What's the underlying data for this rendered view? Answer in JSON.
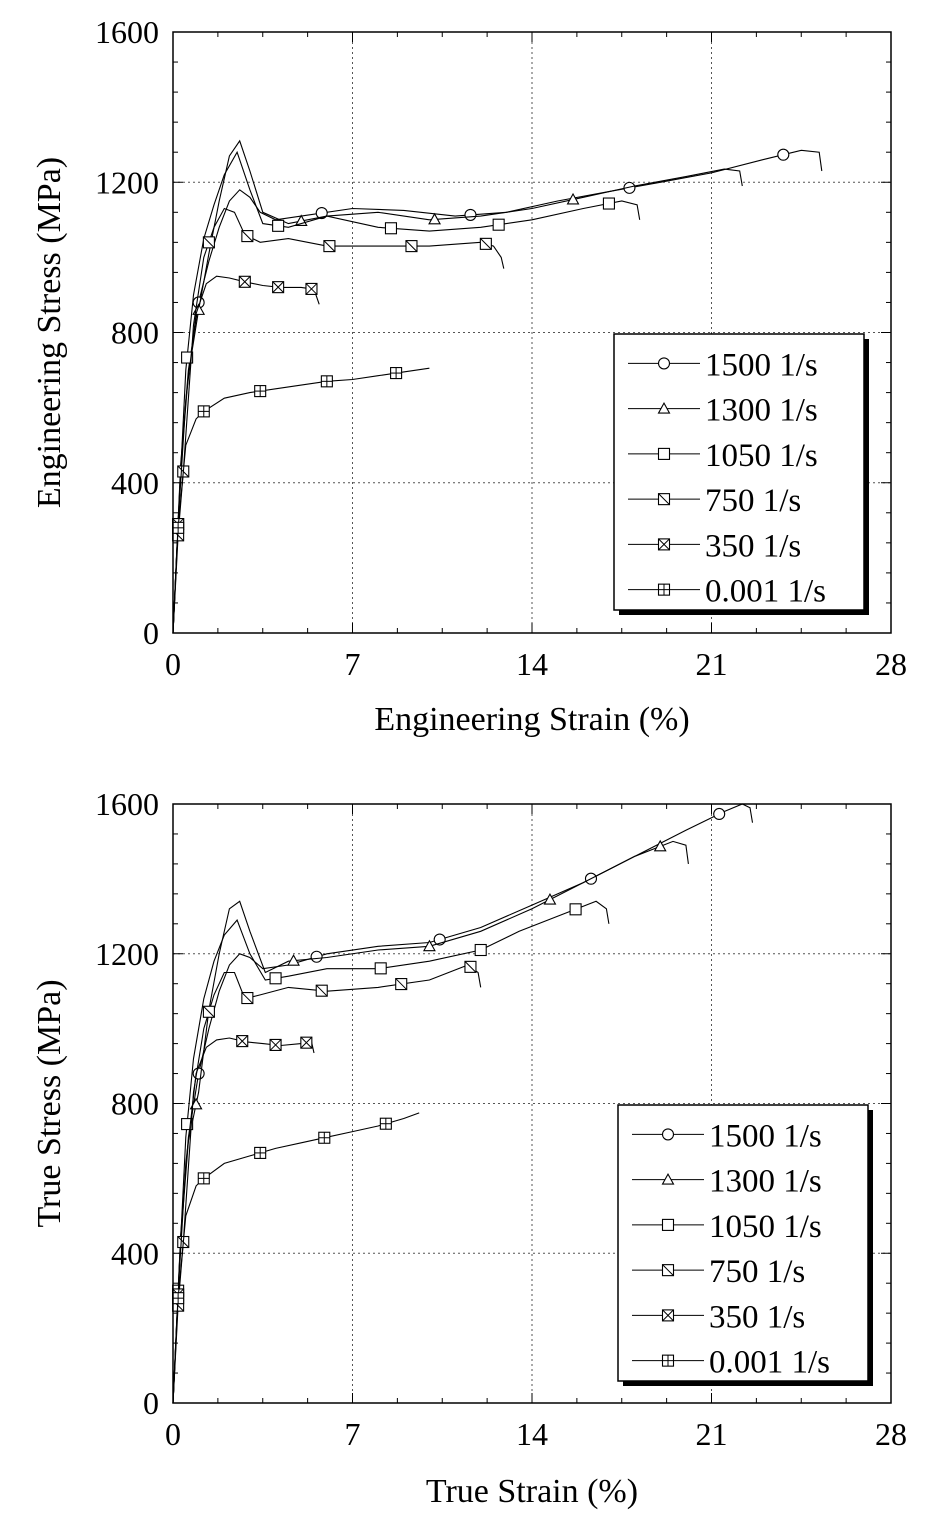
{
  "chart_data": [
    {
      "type": "line",
      "xlabel": "Engineering Strain (%)",
      "ylabel": "Engineering Stress (MPa)",
      "xlim": [
        0,
        28
      ],
      "ylim": [
        0,
        1600
      ],
      "xticks": [
        "0",
        "7",
        "14",
        "21",
        "28"
      ],
      "yticks": [
        "0",
        "400",
        "800",
        "1200",
        "1600"
      ],
      "grid": true,
      "legend_position": "lower-right",
      "series": [
        {
          "name": "1500 1/s",
          "marker": "circle",
          "x": [
            0,
            0.3,
            0.6,
            1.0,
            1.4,
            1.8,
            2.2,
            2.6,
            3.0,
            3.4,
            4.0,
            5.0,
            7.0,
            9.0,
            11.0,
            13.0,
            15.0,
            17.0,
            19.0,
            21.0,
            23.0,
            24.5,
            25.2,
            25.3
          ],
          "y": [
            0,
            450,
            700,
            880,
            990,
            1080,
            1150,
            1180,
            1160,
            1120,
            1100,
            1110,
            1130,
            1125,
            1110,
            1120,
            1150,
            1175,
            1200,
            1225,
            1260,
            1285,
            1280,
            1230
          ],
          "markers_x": [
            1.0,
            5.8,
            11.6,
            17.8,
            23.8
          ]
        },
        {
          "name": "1300 1/s",
          "marker": "triangle",
          "x": [
            0,
            0.3,
            0.6,
            1.0,
            1.4,
            1.8,
            2.2,
            2.6,
            3.0,
            3.5,
            4.5,
            6.0,
            8.0,
            10.0,
            12.0,
            14.0,
            16.0,
            18.0,
            20.0,
            21.5,
            22.1,
            22.2
          ],
          "y": [
            0,
            440,
            690,
            860,
            1010,
            1150,
            1270,
            1310,
            1230,
            1120,
            1090,
            1110,
            1120,
            1100,
            1110,
            1130,
            1160,
            1190,
            1215,
            1235,
            1230,
            1190
          ],
          "markers_x": [
            1.0,
            5.0,
            10.2,
            15.6
          ]
        },
        {
          "name": "1050 1/s",
          "marker": "square",
          "x": [
            0,
            0.2,
            0.5,
            0.8,
            1.2,
            1.6,
            2.0,
            2.5,
            3.0,
            3.5,
            4.5,
            6.0,
            8.0,
            10.0,
            12.0,
            14.0,
            16.0,
            17.5,
            18.1,
            18.2
          ],
          "y": [
            0,
            290,
            700,
            900,
            1050,
            1140,
            1220,
            1280,
            1180,
            1090,
            1080,
            1110,
            1080,
            1070,
            1080,
            1100,
            1130,
            1150,
            1140,
            1100
          ],
          "markers_x": [
            0.2,
            0.55,
            4.1,
            8.5,
            12.7,
            17.0
          ]
        },
        {
          "name": "750 1/s",
          "marker": "square-diagonal",
          "x": [
            0,
            0.2,
            0.4,
            0.8,
            1.2,
            1.6,
            2.0,
            2.4,
            2.8,
            3.4,
            4.5,
            6.0,
            8.0,
            10.0,
            12.0,
            12.5,
            12.8,
            12.9
          ],
          "y": [
            0,
            260,
            430,
            820,
            1000,
            1080,
            1130,
            1120,
            1060,
            1040,
            1050,
            1030,
            1030,
            1030,
            1040,
            1030,
            1000,
            970
          ],
          "markers_x": [
            0.2,
            0.4,
            1.4,
            2.9,
            6.1,
            9.3,
            12.2
          ]
        },
        {
          "name": "350 1/s",
          "marker": "square-x",
          "x": [
            0,
            0.2,
            0.5,
            0.9,
            1.3,
            1.7,
            2.2,
            2.8,
            3.5,
            4.2,
            5.0,
            5.5,
            5.7
          ],
          "y": [
            0,
            290,
            620,
            850,
            930,
            950,
            945,
            935,
            925,
            920,
            920,
            915,
            875
          ],
          "markers_x": [
            0.2,
            2.8,
            4.1,
            5.4
          ]
        },
        {
          "name": "0.001 1/s",
          "marker": "square-plus",
          "x": [
            0,
            0.2,
            0.5,
            0.9,
            1.2,
            2.0,
            3.0,
            4.0,
            5.0,
            6.0,
            7.0,
            8.0,
            9.0,
            10.0
          ],
          "y": [
            0,
            280,
            500,
            570,
            590,
            625,
            640,
            650,
            660,
            670,
            675,
            685,
            695,
            705
          ],
          "markers_x": [
            0.2,
            1.2,
            3.4,
            6.0,
            8.7
          ]
        }
      ]
    },
    {
      "type": "line",
      "xlabel": "True Strain (%)",
      "ylabel": "True Stress (MPa)",
      "xlim": [
        0,
        28
      ],
      "ylim": [
        0,
        1600
      ],
      "xticks": [
        "0",
        "7",
        "14",
        "21",
        "28"
      ],
      "yticks": [
        "0",
        "400",
        "800",
        "1200",
        "1600"
      ],
      "grid": true,
      "legend_position": "lower-right",
      "series": [
        {
          "name": "1500 1/s",
          "marker": "circle",
          "x": [
            0,
            0.3,
            0.6,
            1.0,
            1.4,
            1.8,
            2.2,
            2.6,
            3.0,
            3.5,
            4.5,
            6.0,
            8.0,
            10.0,
            12.0,
            14.0,
            16.0,
            18.0,
            20.0,
            21.5,
            22.2,
            22.5,
            22.6
          ],
          "y": [
            0,
            450,
            710,
            880,
            1000,
            1100,
            1170,
            1200,
            1190,
            1160,
            1170,
            1200,
            1220,
            1230,
            1270,
            1330,
            1390,
            1460,
            1530,
            1580,
            1600,
            1590,
            1550
          ],
          "markers_x": [
            1.0,
            5.6,
            10.4,
            16.3,
            21.3
          ]
        },
        {
          "name": "1300 1/s",
          "marker": "triangle",
          "x": [
            0,
            0.3,
            0.6,
            1.0,
            1.4,
            1.8,
            2.2,
            2.6,
            3.0,
            3.6,
            4.5,
            6.0,
            8.0,
            10.0,
            12.0,
            14.0,
            16.0,
            18.0,
            19.5,
            20.0,
            20.1
          ],
          "y": [
            0,
            440,
            700,
            830,
            1050,
            1200,
            1320,
            1340,
            1260,
            1150,
            1180,
            1190,
            1210,
            1220,
            1260,
            1320,
            1390,
            1460,
            1500,
            1490,
            1440
          ],
          "markers_x": [
            0.9,
            4.7,
            10.0,
            14.7,
            19.0
          ]
        },
        {
          "name": "1050 1/s",
          "marker": "square",
          "x": [
            0,
            0.2,
            0.5,
            0.8,
            1.2,
            1.6,
            2.0,
            2.5,
            3.0,
            3.6,
            4.5,
            6.0,
            8.0,
            10.0,
            12.0,
            13.5,
            15.0,
            16.5,
            16.9,
            17.0
          ],
          "y": [
            0,
            300,
            710,
            920,
            1080,
            1180,
            1250,
            1290,
            1200,
            1130,
            1140,
            1160,
            1160,
            1180,
            1210,
            1260,
            1300,
            1340,
            1320,
            1280
          ],
          "markers_x": [
            0.2,
            0.55,
            4.0,
            8.1,
            12.0,
            15.7
          ]
        },
        {
          "name": "750 1/s",
          "marker": "square-diagonal",
          "x": [
            0,
            0.2,
            0.4,
            0.8,
            1.2,
            1.6,
            2.0,
            2.4,
            2.8,
            3.4,
            4.5,
            6.0,
            8.0,
            10.0,
            11.5,
            11.9,
            12.0
          ],
          "y": [
            0,
            260,
            430,
            830,
            1000,
            1090,
            1150,
            1150,
            1080,
            1090,
            1110,
            1100,
            1110,
            1130,
            1170,
            1150,
            1110
          ],
          "markers_x": [
            0.2,
            0.4,
            1.4,
            2.9,
            5.8,
            8.9,
            11.6
          ]
        },
        {
          "name": "350 1/s",
          "marker": "square-x",
          "x": [
            0,
            0.2,
            0.5,
            0.9,
            1.3,
            1.7,
            2.2,
            2.8,
            3.5,
            4.2,
            5.0,
            5.4,
            5.5
          ],
          "y": [
            0,
            290,
            640,
            880,
            950,
            970,
            975,
            965,
            960,
            955,
            960,
            965,
            935
          ],
          "markers_x": [
            0.2,
            2.7,
            4.0,
            5.2
          ]
        },
        {
          "name": "0.001 1/s",
          "marker": "square-plus",
          "x": [
            0,
            0.2,
            0.5,
            0.9,
            1.2,
            2.0,
            3.0,
            4.0,
            5.0,
            6.0,
            7.0,
            8.0,
            9.0,
            9.6
          ],
          "y": [
            0,
            280,
            500,
            580,
            600,
            640,
            660,
            680,
            695,
            710,
            725,
            740,
            760,
            775
          ],
          "markers_x": [
            0.2,
            1.2,
            3.4,
            5.9,
            8.3
          ]
        }
      ]
    }
  ]
}
